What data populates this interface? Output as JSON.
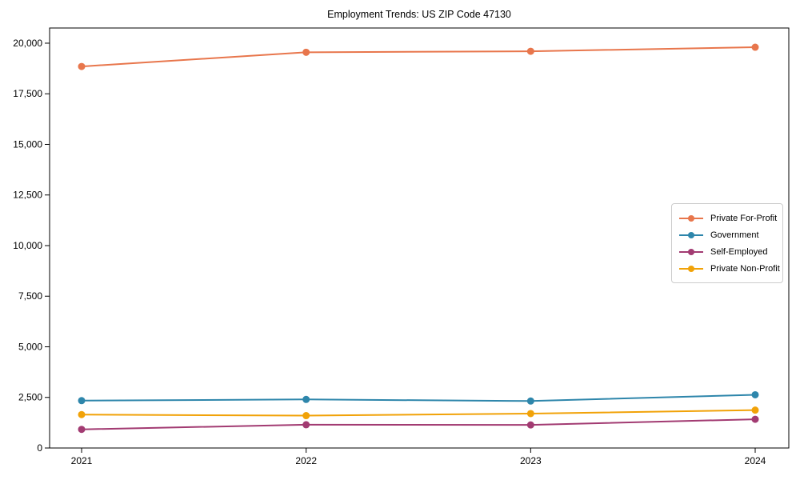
{
  "figure": {
    "background": "#ffffff",
    "spine_color": "#000000",
    "tick_label_color": "#000000",
    "legend_border_color": "#cccccc"
  },
  "chart_data": {
    "type": "line",
    "title": "Employment Trends: US ZIP Code 47130",
    "x": [
      2021,
      2022,
      2023,
      2024
    ],
    "x_tick_labels": [
      "2021",
      "2022",
      "2023",
      "2024"
    ],
    "series": [
      {
        "name": "Private For-Profit",
        "color": "#E8764C",
        "values": [
          18850,
          19550,
          19600,
          19800
        ]
      },
      {
        "name": "Government",
        "color": "#2E86AB",
        "values": [
          2340,
          2400,
          2320,
          2630
        ]
      },
      {
        "name": "Self-Employed",
        "color": "#A23B72",
        "values": [
          920,
          1150,
          1140,
          1420
        ]
      },
      {
        "name": "Private Non-Profit",
        "color": "#F1A208",
        "values": [
          1650,
          1600,
          1700,
          1870
        ]
      }
    ],
    "ylim": [
      0,
      20750
    ],
    "yticks": [
      0,
      2500,
      5000,
      7500,
      10000,
      12500,
      15000,
      17500,
      20000
    ],
    "ytick_labels": [
      "0",
      "2,500",
      "5,000",
      "7,500",
      "10,000",
      "12,500",
      "15,000",
      "17,500",
      "20,000"
    ],
    "grid": false,
    "legend_position": "center-right",
    "marker": "circle",
    "line_width": 2,
    "marker_radius": 4.5
  }
}
